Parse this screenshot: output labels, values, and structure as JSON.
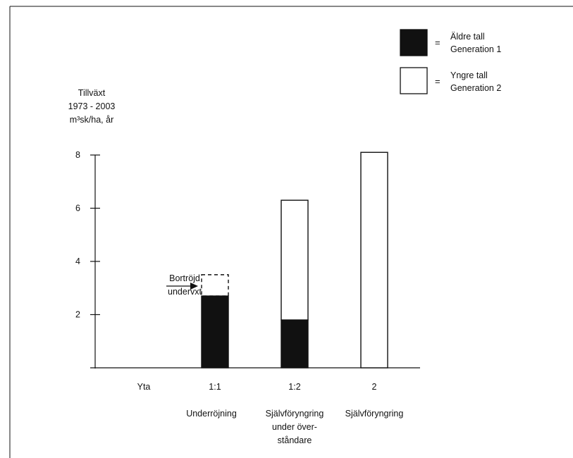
{
  "chart_data": {
    "type": "bar",
    "ylabel_lines": [
      "Tillväxt",
      "1973 - 2003",
      "m³sk/ha, år"
    ],
    "ylim": [
      0,
      8
    ],
    "yticks": [
      2,
      4,
      6,
      8
    ],
    "xaxis_row_label": "Yta",
    "categories": [
      "1:1",
      "1:2",
      "2"
    ],
    "category_descriptions": [
      [
        "Underröjning"
      ],
      [
        "Självföryngring",
        "under över-",
        "ståndare"
      ],
      [
        "Självföryngring"
      ]
    ],
    "series": [
      {
        "name": "Äldre tall Generation 1",
        "fill": "#111111",
        "values": [
          2.7,
          1.8,
          0
        ]
      },
      {
        "name": "Yngre tall Generation 2",
        "fill": "#ffffff",
        "values": [
          0,
          4.5,
          8.1
        ]
      },
      {
        "name": "Bortröjd underväxt",
        "fill": "none",
        "dashed": true,
        "values": [
          0.8,
          0,
          0
        ]
      }
    ],
    "legend": [
      {
        "symbol": "=",
        "lines": [
          "Äldre tall",
          "Generation 1"
        ],
        "fill": "#111111"
      },
      {
        "symbol": "=",
        "lines": [
          "Yngre tall",
          "Generation 2"
        ],
        "fill": "#ffffff"
      }
    ],
    "legend_position": "top-right",
    "annotation": {
      "lines": [
        "Bortröjd",
        "undervxt"
      ],
      "target_category": "1:1"
    },
    "grid": false
  }
}
